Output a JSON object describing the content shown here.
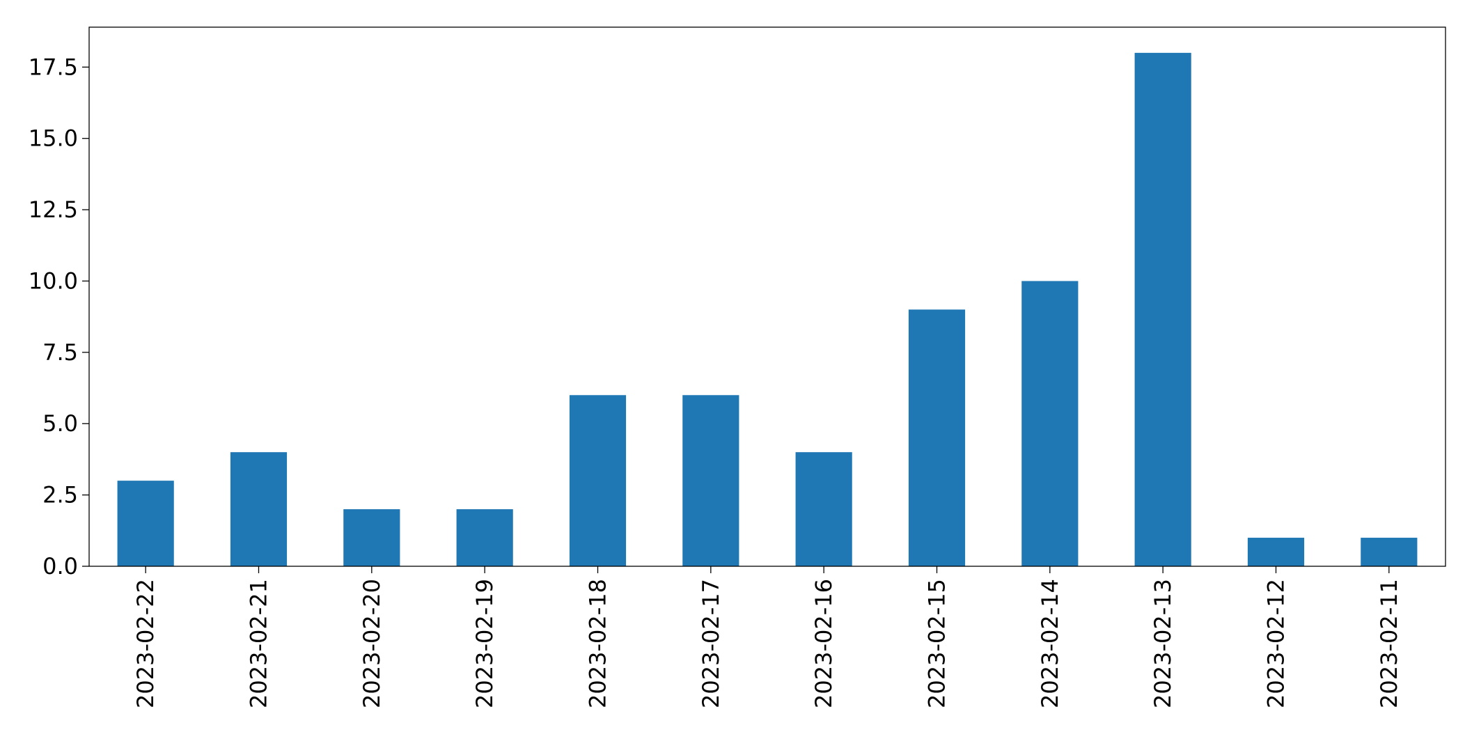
{
  "chart_data": {
    "type": "bar",
    "categories": [
      "2023-02-22",
      "2023-02-21",
      "2023-02-20",
      "2023-02-19",
      "2023-02-18",
      "2023-02-17",
      "2023-02-16",
      "2023-02-15",
      "2023-02-14",
      "2023-02-13",
      "2023-02-12",
      "2023-02-11"
    ],
    "values": [
      3,
      4,
      2,
      2,
      6,
      6,
      4,
      9,
      10,
      18,
      1,
      1
    ],
    "color": "#1f77b4",
    "ylim": [
      0,
      18.9
    ],
    "yticks": [
      {
        "value": 0,
        "label": "0.0"
      },
      2.5,
      {
        "value": 5,
        "label": "5.0"
      },
      7.5,
      {
        "value": 10,
        "label": "10.0"
      },
      12.5,
      {
        "value": 15,
        "label": "15.0"
      },
      17.5
    ],
    "grid": false
  }
}
